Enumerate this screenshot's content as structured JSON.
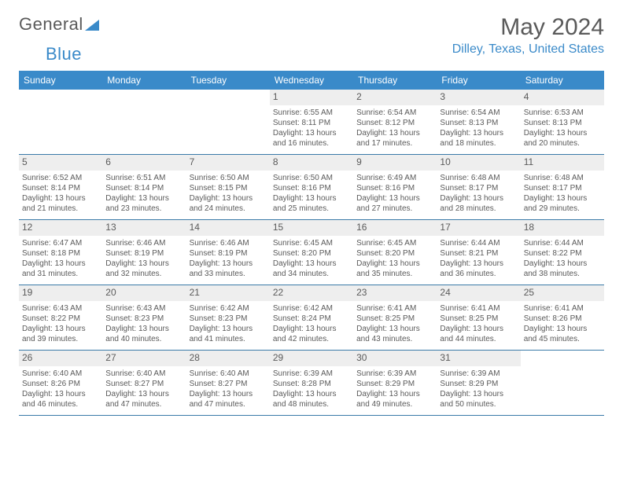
{
  "brand": {
    "part1": "General",
    "part2": "Blue"
  },
  "title": "May 2024",
  "location": "Dilley, Texas, United States",
  "colors": {
    "header_bg": "#3a8ac9",
    "accent": "#3a8ac9",
    "text": "#5a5a5a",
    "daynum_bg": "#eeeeee",
    "week_border": "#3a7aa8"
  },
  "day_names": [
    "Sunday",
    "Monday",
    "Tuesday",
    "Wednesday",
    "Thursday",
    "Friday",
    "Saturday"
  ],
  "weeks": [
    [
      null,
      null,
      null,
      {
        "n": "1",
        "sr": "Sunrise: 6:55 AM",
        "ss": "Sunset: 8:11 PM",
        "d1": "Daylight: 13 hours",
        "d2": "and 16 minutes."
      },
      {
        "n": "2",
        "sr": "Sunrise: 6:54 AM",
        "ss": "Sunset: 8:12 PM",
        "d1": "Daylight: 13 hours",
        "d2": "and 17 minutes."
      },
      {
        "n": "3",
        "sr": "Sunrise: 6:54 AM",
        "ss": "Sunset: 8:13 PM",
        "d1": "Daylight: 13 hours",
        "d2": "and 18 minutes."
      },
      {
        "n": "4",
        "sr": "Sunrise: 6:53 AM",
        "ss": "Sunset: 8:13 PM",
        "d1": "Daylight: 13 hours",
        "d2": "and 20 minutes."
      }
    ],
    [
      {
        "n": "5",
        "sr": "Sunrise: 6:52 AM",
        "ss": "Sunset: 8:14 PM",
        "d1": "Daylight: 13 hours",
        "d2": "and 21 minutes."
      },
      {
        "n": "6",
        "sr": "Sunrise: 6:51 AM",
        "ss": "Sunset: 8:14 PM",
        "d1": "Daylight: 13 hours",
        "d2": "and 23 minutes."
      },
      {
        "n": "7",
        "sr": "Sunrise: 6:50 AM",
        "ss": "Sunset: 8:15 PM",
        "d1": "Daylight: 13 hours",
        "d2": "and 24 minutes."
      },
      {
        "n": "8",
        "sr": "Sunrise: 6:50 AM",
        "ss": "Sunset: 8:16 PM",
        "d1": "Daylight: 13 hours",
        "d2": "and 25 minutes."
      },
      {
        "n": "9",
        "sr": "Sunrise: 6:49 AM",
        "ss": "Sunset: 8:16 PM",
        "d1": "Daylight: 13 hours",
        "d2": "and 27 minutes."
      },
      {
        "n": "10",
        "sr": "Sunrise: 6:48 AM",
        "ss": "Sunset: 8:17 PM",
        "d1": "Daylight: 13 hours",
        "d2": "and 28 minutes."
      },
      {
        "n": "11",
        "sr": "Sunrise: 6:48 AM",
        "ss": "Sunset: 8:17 PM",
        "d1": "Daylight: 13 hours",
        "d2": "and 29 minutes."
      }
    ],
    [
      {
        "n": "12",
        "sr": "Sunrise: 6:47 AM",
        "ss": "Sunset: 8:18 PM",
        "d1": "Daylight: 13 hours",
        "d2": "and 31 minutes."
      },
      {
        "n": "13",
        "sr": "Sunrise: 6:46 AM",
        "ss": "Sunset: 8:19 PM",
        "d1": "Daylight: 13 hours",
        "d2": "and 32 minutes."
      },
      {
        "n": "14",
        "sr": "Sunrise: 6:46 AM",
        "ss": "Sunset: 8:19 PM",
        "d1": "Daylight: 13 hours",
        "d2": "and 33 minutes."
      },
      {
        "n": "15",
        "sr": "Sunrise: 6:45 AM",
        "ss": "Sunset: 8:20 PM",
        "d1": "Daylight: 13 hours",
        "d2": "and 34 minutes."
      },
      {
        "n": "16",
        "sr": "Sunrise: 6:45 AM",
        "ss": "Sunset: 8:20 PM",
        "d1": "Daylight: 13 hours",
        "d2": "and 35 minutes."
      },
      {
        "n": "17",
        "sr": "Sunrise: 6:44 AM",
        "ss": "Sunset: 8:21 PM",
        "d1": "Daylight: 13 hours",
        "d2": "and 36 minutes."
      },
      {
        "n": "18",
        "sr": "Sunrise: 6:44 AM",
        "ss": "Sunset: 8:22 PM",
        "d1": "Daylight: 13 hours",
        "d2": "and 38 minutes."
      }
    ],
    [
      {
        "n": "19",
        "sr": "Sunrise: 6:43 AM",
        "ss": "Sunset: 8:22 PM",
        "d1": "Daylight: 13 hours",
        "d2": "and 39 minutes."
      },
      {
        "n": "20",
        "sr": "Sunrise: 6:43 AM",
        "ss": "Sunset: 8:23 PM",
        "d1": "Daylight: 13 hours",
        "d2": "and 40 minutes."
      },
      {
        "n": "21",
        "sr": "Sunrise: 6:42 AM",
        "ss": "Sunset: 8:23 PM",
        "d1": "Daylight: 13 hours",
        "d2": "and 41 minutes."
      },
      {
        "n": "22",
        "sr": "Sunrise: 6:42 AM",
        "ss": "Sunset: 8:24 PM",
        "d1": "Daylight: 13 hours",
        "d2": "and 42 minutes."
      },
      {
        "n": "23",
        "sr": "Sunrise: 6:41 AM",
        "ss": "Sunset: 8:25 PM",
        "d1": "Daylight: 13 hours",
        "d2": "and 43 minutes."
      },
      {
        "n": "24",
        "sr": "Sunrise: 6:41 AM",
        "ss": "Sunset: 8:25 PM",
        "d1": "Daylight: 13 hours",
        "d2": "and 44 minutes."
      },
      {
        "n": "25",
        "sr": "Sunrise: 6:41 AM",
        "ss": "Sunset: 8:26 PM",
        "d1": "Daylight: 13 hours",
        "d2": "and 45 minutes."
      }
    ],
    [
      {
        "n": "26",
        "sr": "Sunrise: 6:40 AM",
        "ss": "Sunset: 8:26 PM",
        "d1": "Daylight: 13 hours",
        "d2": "and 46 minutes."
      },
      {
        "n": "27",
        "sr": "Sunrise: 6:40 AM",
        "ss": "Sunset: 8:27 PM",
        "d1": "Daylight: 13 hours",
        "d2": "and 47 minutes."
      },
      {
        "n": "28",
        "sr": "Sunrise: 6:40 AM",
        "ss": "Sunset: 8:27 PM",
        "d1": "Daylight: 13 hours",
        "d2": "and 47 minutes."
      },
      {
        "n": "29",
        "sr": "Sunrise: 6:39 AM",
        "ss": "Sunset: 8:28 PM",
        "d1": "Daylight: 13 hours",
        "d2": "and 48 minutes."
      },
      {
        "n": "30",
        "sr": "Sunrise: 6:39 AM",
        "ss": "Sunset: 8:29 PM",
        "d1": "Daylight: 13 hours",
        "d2": "and 49 minutes."
      },
      {
        "n": "31",
        "sr": "Sunrise: 6:39 AM",
        "ss": "Sunset: 8:29 PM",
        "d1": "Daylight: 13 hours",
        "d2": "and 50 minutes."
      },
      null
    ]
  ]
}
